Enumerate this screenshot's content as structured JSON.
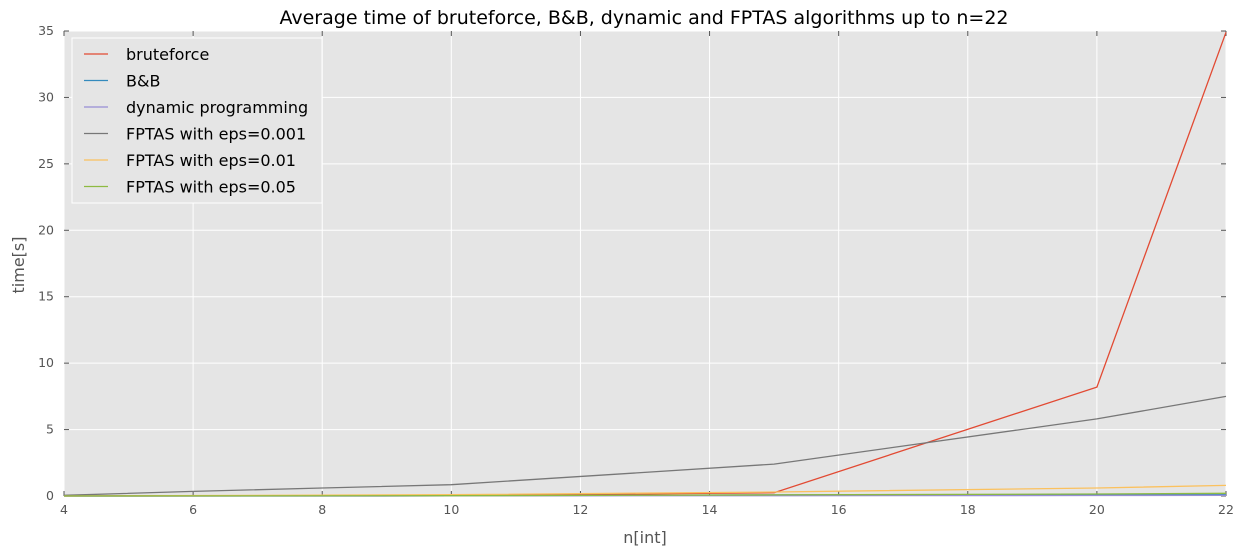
{
  "chart_data": {
    "type": "line",
    "title": "Average time of bruteforce, B&B, dynamic and FPTAS algorithms up to n=22",
    "xlabel": "n[int]",
    "ylabel": "time[s]",
    "xlim": [
      4,
      22
    ],
    "ylim": [
      0,
      35
    ],
    "xticks": [
      4,
      6,
      8,
      10,
      12,
      14,
      16,
      18,
      20,
      22
    ],
    "yticks": [
      0,
      5,
      10,
      15,
      20,
      25,
      30,
      35
    ],
    "grid": true,
    "legend_position": "top-left",
    "background": "#e5e5e5",
    "series": [
      {
        "name": "bruteforce",
        "color": "#e24a33",
        "x": [
          4,
          10,
          15,
          20,
          22
        ],
        "y": [
          0.0,
          0.02,
          0.25,
          8.2,
          34.9
        ]
      },
      {
        "name": "B&B",
        "color": "#348abd",
        "x": [
          4,
          10,
          15,
          20,
          22
        ],
        "y": [
          0.0,
          0.01,
          0.08,
          0.1,
          0.12
        ]
      },
      {
        "name": "dynamic programming",
        "color": "#988ed5",
        "x": [
          4,
          10,
          15,
          20,
          22
        ],
        "y": [
          0.0,
          0.01,
          0.02,
          0.04,
          0.05
        ]
      },
      {
        "name": "FPTAS with eps=0.001",
        "color": "#777777",
        "x": [
          4,
          6,
          8,
          10,
          15,
          20,
          22
        ],
        "y": [
          0.05,
          0.35,
          0.6,
          0.85,
          2.4,
          5.8,
          7.5
        ]
      },
      {
        "name": "FPTAS with eps=0.01",
        "color": "#fbc15e",
        "x": [
          4,
          10,
          15,
          20,
          22
        ],
        "y": [
          0.0,
          0.1,
          0.3,
          0.6,
          0.8
        ]
      },
      {
        "name": "FPTAS with eps=0.05",
        "color": "#8eba42",
        "x": [
          4,
          10,
          15,
          20,
          22
        ],
        "y": [
          0.0,
          0.02,
          0.08,
          0.15,
          0.2
        ]
      }
    ]
  }
}
